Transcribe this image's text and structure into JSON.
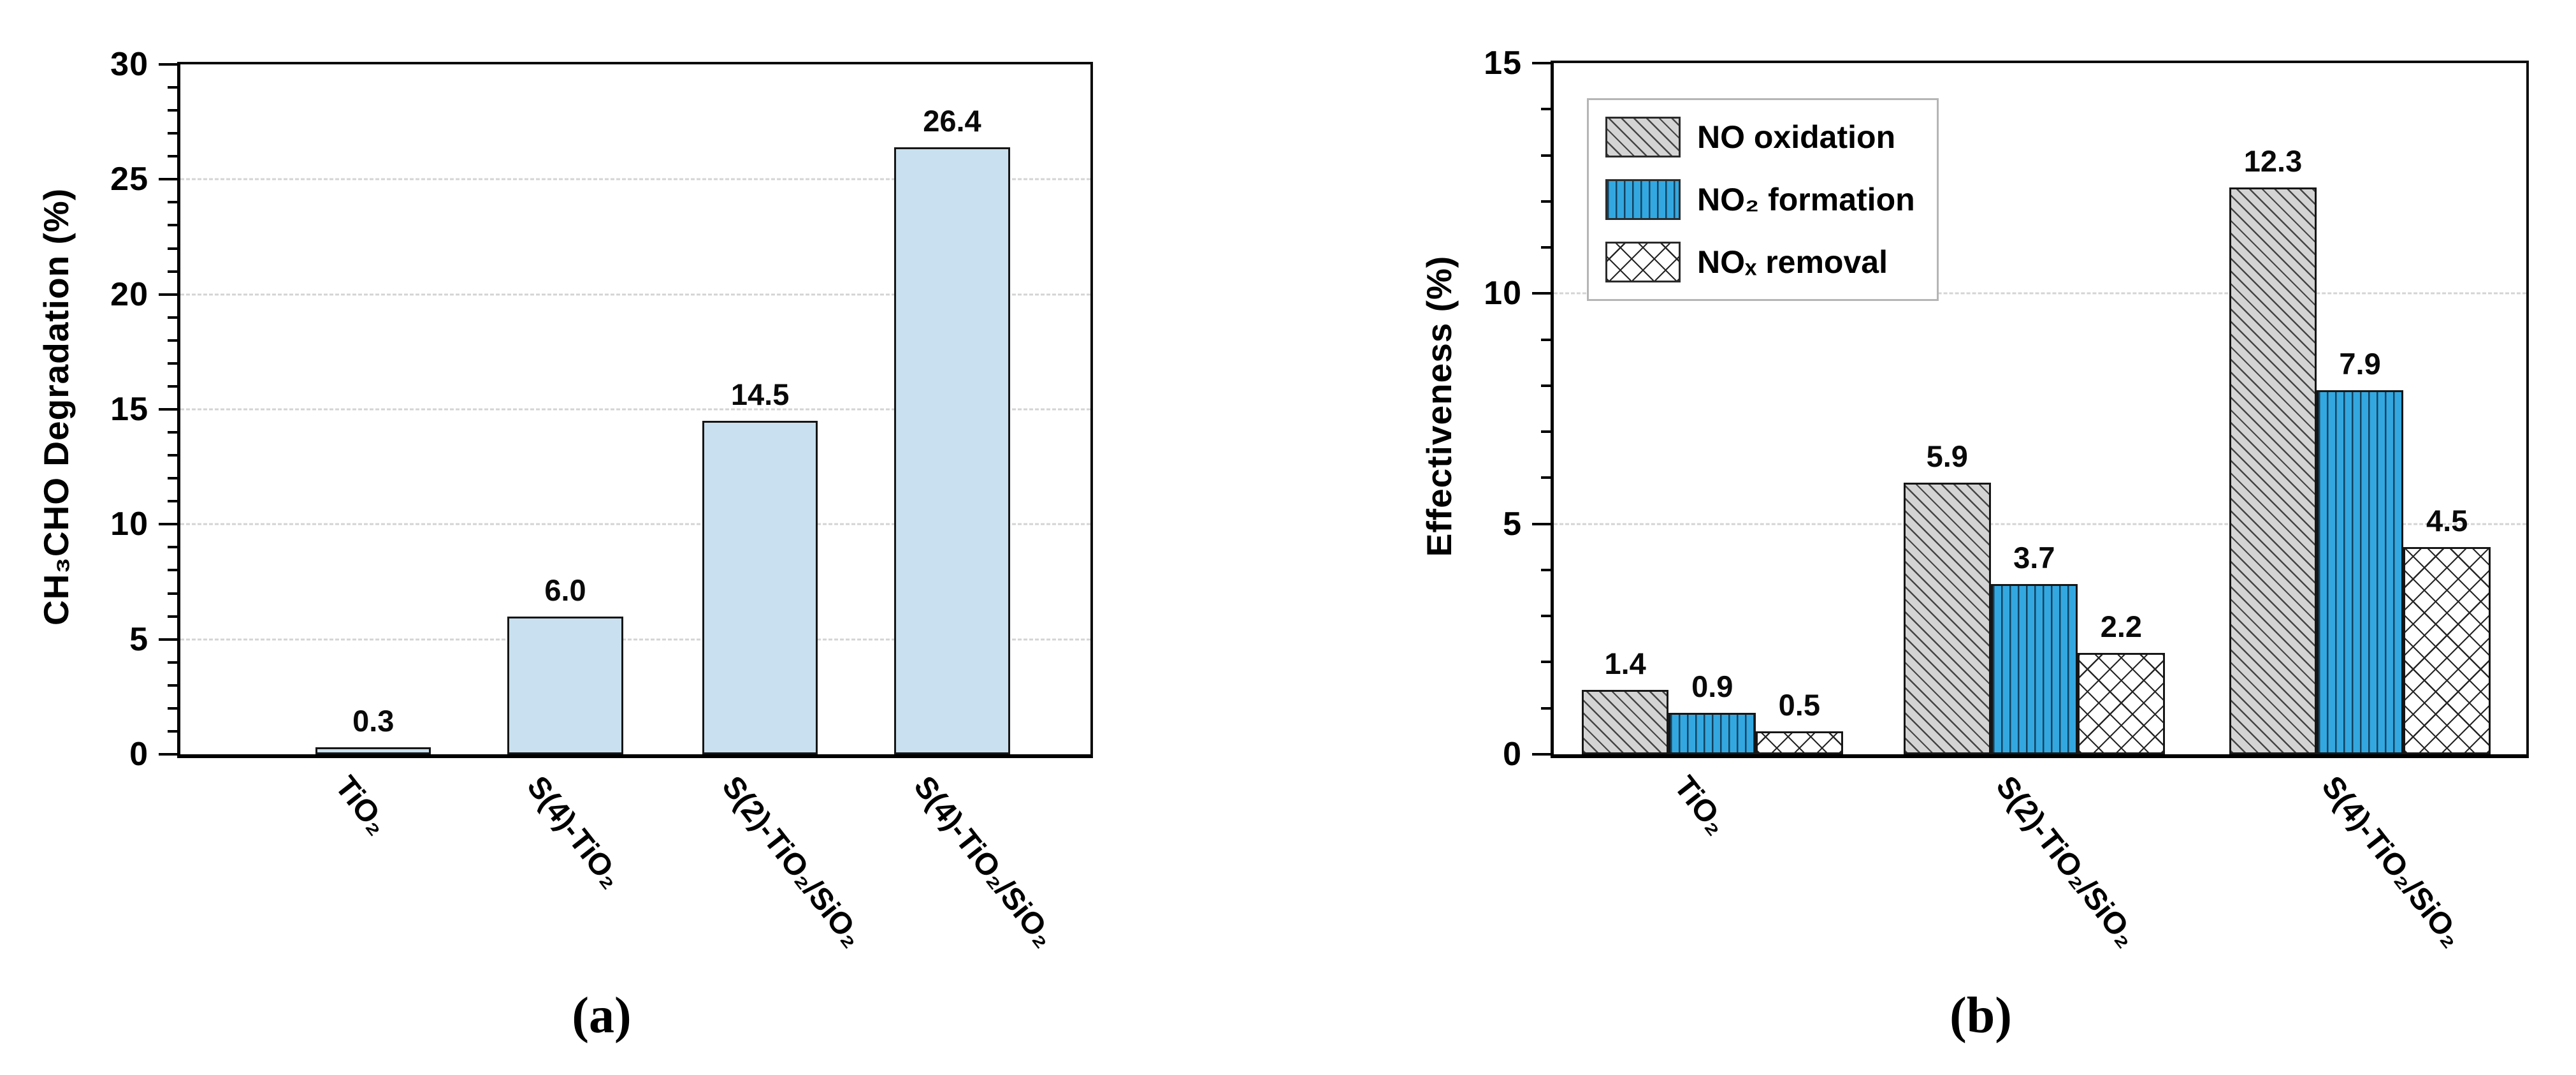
{
  "figure": {
    "captions": {
      "a": "(a)",
      "b": "(b)"
    }
  },
  "colors": {
    "bar_light_blue": "#c8e0ef",
    "bar_blue": "#33a8e0",
    "bar_gray": "#d4d4d4",
    "bar_border": "#161616",
    "gridline": "#d4d4d4",
    "legend_border": "#b5b5b5"
  },
  "chart_data": [
    {
      "id": "a",
      "type": "bar",
      "title": "",
      "xlabel": "",
      "ylabel": "CH₃CHO Degradation (%)",
      "categories": [
        "TiO₂",
        "S(4)-TiO₂",
        "S(2)-TiO₂/SiO₂",
        "S(4)-TiO₂/SiO₂"
      ],
      "values": [
        0.3,
        6.0,
        14.5,
        26.4
      ],
      "ylim": [
        0,
        30
      ],
      "ytick_step": 5,
      "minor_tick_step": 1,
      "yticks": [
        0,
        5,
        10,
        15,
        20,
        25,
        30
      ],
      "grid": "horizontal-dashed",
      "bar_style": "light-blue-solid",
      "value_labels_shown": true
    },
    {
      "id": "b",
      "type": "bar",
      "title": "",
      "xlabel": "",
      "ylabel": "Effectiveness (%)",
      "categories": [
        "TiO₂",
        "S(2)-TiO₂/SiO₂",
        "S(4)-TiO₂/SiO₂"
      ],
      "series": [
        {
          "name": "NO oxidation",
          "style": "gray-diagonal-hatch",
          "values": [
            1.4,
            5.9,
            12.3
          ]
        },
        {
          "name": "NO₂ formation",
          "style": "blue-vertical-lines",
          "values": [
            0.9,
            3.7,
            7.9
          ]
        },
        {
          "name": "NOₓ removal",
          "style": "white-crosshatch",
          "values": [
            0.5,
            2.2,
            4.5
          ]
        }
      ],
      "ylim": [
        0,
        15
      ],
      "ytick_step": 5,
      "minor_tick_step": 1,
      "yticks": [
        0,
        5,
        10,
        15
      ],
      "grid": "horizontal-dashed",
      "legend_position": "upper-left",
      "value_labels_shown": true
    }
  ]
}
